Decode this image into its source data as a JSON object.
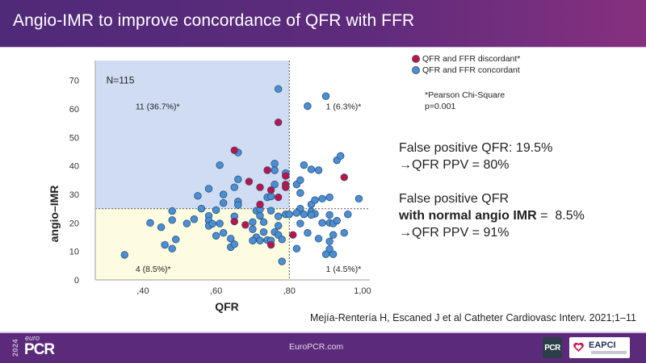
{
  "header": {
    "title": "Angio-IMR to improve concordance of QFR with FFR"
  },
  "legend": {
    "items": [
      {
        "label": "QFR and FFR discordant*",
        "color": "#c0124a"
      },
      {
        "label": "QFR and FFR concordant",
        "color": "#4a8fd6"
      }
    ],
    "note_line1": "*Pearson Chi-Square",
    "note_line2": "p=0.001"
  },
  "stats": {
    "line1": "False positive QFR: 19.5%",
    "line2": "→QFR PPV = 80%",
    "line3": "False positive QFR",
    "line4_bold": "with normal angio IMR",
    "line4_rest": " =  8.5%",
    "line5": "→QFR PPV = 91%"
  },
  "citation": "Mejía-Rentería H, Escaned J et al Catheter Cardiovasc Interv. 2021;1–11",
  "footer": {
    "site": "EuroPCR.com",
    "logo_year": "2024",
    "logo_euro": "euro",
    "logo_pcr": "PCR",
    "badge_pcr": "PCR",
    "badge_eapci": "EAPCI"
  },
  "chart_data": {
    "type": "scatter",
    "title": "",
    "xlabel": "QFR",
    "ylabel": "angio–IMR",
    "xlim": [
      0.27,
      1.02
    ],
    "ylim": [
      0,
      77
    ],
    "xticks": [
      0.4,
      0.6,
      0.8,
      1.0
    ],
    "xtick_labels": [
      ",40",
      ",60",
      ",80",
      "1,00"
    ],
    "yticks": [
      0,
      10,
      20,
      30,
      40,
      50,
      60,
      70
    ],
    "ytick_labels": [
      "0",
      "10",
      "20",
      "30",
      "40",
      "50",
      "60",
      "70"
    ],
    "thresholds": {
      "x": 0.8,
      "y": 25
    },
    "regions": [
      {
        "name": "upper-left",
        "color": "#cfdcf2"
      },
      {
        "name": "lower-left",
        "color": "#fdfbe0"
      }
    ],
    "annotations": [
      {
        "text": "N=115",
        "x": 0.3,
        "y": 70
      },
      {
        "text": "11 (36.7%)*",
        "x": 0.38,
        "y": 61
      },
      {
        "text": "1 (6.3%)*",
        "x": 0.9,
        "y": 61
      },
      {
        "text": "4 (8.5%)*",
        "x": 0.38,
        "y": 4
      },
      {
        "text": "1 (4.5%)*",
        "x": 0.9,
        "y": 4
      }
    ],
    "grid": false,
    "legend_position": "top-right",
    "series": [
      {
        "name": "QFR and FFR discordant*",
        "color": "#c0124a",
        "points": [
          [
            0.65,
            45.5
          ],
          [
            0.77,
            55.3
          ],
          [
            0.74,
            38.5
          ],
          [
            0.69,
            34.5
          ],
          [
            0.72,
            32.5
          ],
          [
            0.75,
            31.5
          ],
          [
            0.77,
            29.0
          ],
          [
            0.79,
            36.5
          ],
          [
            0.79,
            33.5
          ],
          [
            0.79,
            32.5
          ],
          [
            0.72,
            26.5
          ],
          [
            0.65,
            20.5
          ],
          [
            0.68,
            19.3
          ],
          [
            0.75,
            12.3
          ],
          [
            0.81,
            15.8
          ],
          [
            0.95,
            36.0
          ]
        ]
      },
      {
        "name": "QFR and FFR concordant",
        "color": "#4a8fd6",
        "points": [
          [
            0.77,
            67.0
          ],
          [
            0.9,
            64.5
          ],
          [
            0.85,
            61.0
          ],
          [
            0.66,
            44.7
          ],
          [
            0.61,
            40.3
          ],
          [
            0.76,
            40.8
          ],
          [
            0.76,
            38.5
          ],
          [
            0.79,
            37.5
          ],
          [
            0.66,
            35.3
          ],
          [
            0.65,
            32.5
          ],
          [
            0.76,
            33.5
          ],
          [
            0.58,
            32.0
          ],
          [
            0.62,
            30.0
          ],
          [
            0.55,
            29.5
          ],
          [
            0.74,
            29.0
          ],
          [
            0.75,
            29.3
          ],
          [
            0.66,
            27.5
          ],
          [
            0.62,
            27.0
          ],
          [
            0.66,
            26.3
          ],
          [
            0.56,
            25.0
          ],
          [
            0.6,
            24.5
          ],
          [
            0.71,
            24.3
          ],
          [
            0.72,
            24.8
          ],
          [
            0.77,
            22.3
          ],
          [
            0.79,
            23.0
          ],
          [
            0.42,
            20.0
          ],
          [
            0.45,
            18.5
          ],
          [
            0.48,
            24.2
          ],
          [
            0.48,
            21.0
          ],
          [
            0.52,
            19.8
          ],
          [
            0.54,
            21.3
          ],
          [
            0.58,
            22.5
          ],
          [
            0.58,
            20.8
          ],
          [
            0.58,
            19.0
          ],
          [
            0.59,
            19.7
          ],
          [
            0.61,
            19.8
          ],
          [
            0.6,
            15.5
          ],
          [
            0.62,
            16.5
          ],
          [
            0.64,
            14.5
          ],
          [
            0.64,
            11.5
          ],
          [
            0.65,
            12.5
          ],
          [
            0.7,
            20.3
          ],
          [
            0.7,
            17.8
          ],
          [
            0.71,
            15.0
          ],
          [
            0.72,
            13.8
          ],
          [
            0.73,
            20.3
          ],
          [
            0.73,
            16.8
          ],
          [
            0.74,
            14.0
          ],
          [
            0.75,
            13.8
          ],
          [
            0.76,
            16.8
          ],
          [
            0.77,
            19.0
          ],
          [
            0.77,
            15.8
          ],
          [
            0.78,
            14.2
          ],
          [
            0.78,
            6.5
          ],
          [
            0.72,
            22.5
          ],
          [
            0.7,
            13.8
          ],
          [
            0.65,
            22.3
          ],
          [
            0.46,
            12.3
          ],
          [
            0.48,
            11.0
          ],
          [
            0.49,
            14.2
          ],
          [
            0.35,
            8.8
          ],
          [
            0.82,
            33.5
          ],
          [
            0.83,
            30.5
          ],
          [
            0.83,
            35.0
          ],
          [
            0.84,
            40.3
          ],
          [
            0.86,
            38.8
          ],
          [
            0.88,
            38.5
          ],
          [
            0.89,
            28.5
          ],
          [
            0.91,
            29.0
          ],
          [
            0.93,
            42.0
          ],
          [
            0.94,
            43.5
          ],
          [
            0.99,
            28.5
          ],
          [
            0.86,
            26.5
          ],
          [
            0.87,
            28.0
          ],
          [
            0.83,
            25.0
          ],
          [
            0.86,
            24.0
          ],
          [
            0.87,
            23.2
          ],
          [
            0.82,
            23.5
          ],
          [
            0.84,
            23.0
          ],
          [
            0.86,
            22.8
          ],
          [
            0.91,
            22.8
          ],
          [
            0.91,
            20.0
          ],
          [
            0.92,
            19.8
          ],
          [
            0.93,
            20.8
          ],
          [
            0.89,
            20.0
          ],
          [
            0.96,
            23.0
          ],
          [
            0.83,
            19.8
          ],
          [
            0.85,
            16.5
          ],
          [
            0.88,
            14.5
          ],
          [
            0.91,
            13.5
          ],
          [
            0.92,
            15.8
          ],
          [
            0.95,
            16.5
          ],
          [
            0.82,
            11.0
          ],
          [
            0.9,
            9.0
          ],
          [
            0.91,
            10.8
          ],
          [
            0.92,
            9.0
          ],
          [
            0.8,
            23.0
          ],
          [
            0.75,
            24.3
          ]
        ]
      }
    ]
  }
}
